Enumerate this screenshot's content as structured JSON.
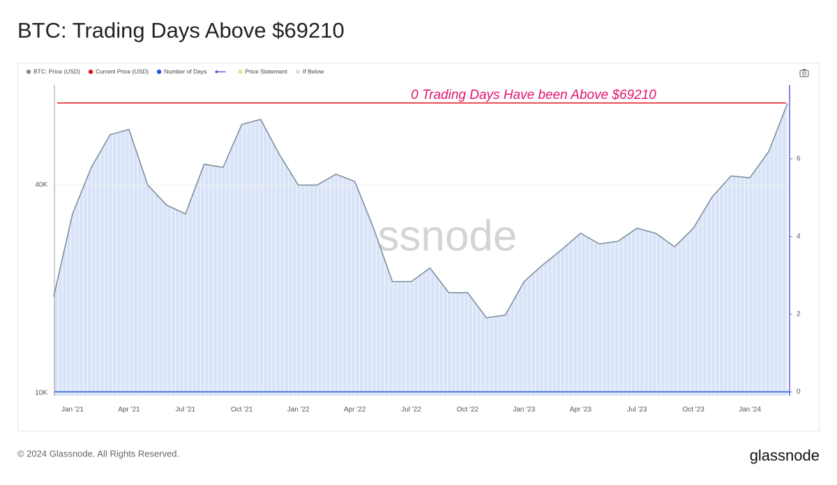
{
  "chart_data": {
    "type": "line",
    "title": "BTC: Trading Days Above $69210",
    "annotation": "0 Trading Days Have been Above $69210",
    "annotation_name": "Price Statement",
    "annotation_color": "#f5dc96",
    "footer": "© 2024 Glassnode. All Rights Reserved.",
    "brand": "glassnode",
    "x": [
      null,
      "Jan '21",
      null,
      null,
      "Apr '21",
      null,
      null,
      "Jul '21",
      null,
      null,
      "Oct '21",
      null,
      null,
      "Jan '22",
      null,
      null,
      "Apr '22",
      null,
      null,
      "Jul '22",
      null,
      null,
      "Oct '22",
      null,
      null,
      "Jan '23",
      null,
      null,
      "Apr '23",
      null,
      null,
      "Jul '23",
      null,
      null,
      "Oct '23",
      null,
      null,
      "Jan '24",
      null,
      null
    ],
    "series": [
      {
        "name": "BTC: Price (USD)",
        "color": "#7f8f9c",
        "values": [
          19000,
          33000,
          45000,
          56000,
          58000,
          40000,
          35000,
          33000,
          46000,
          45000,
          60000,
          62000,
          49000,
          40000,
          40000,
          43000,
          41000,
          30000,
          21000,
          21000,
          23000,
          19500,
          19500,
          16500,
          16800,
          21000,
          23500,
          26000,
          29000,
          27000,
          27500,
          30000,
          29000,
          26500,
          30000,
          37000,
          42500,
          42000,
          50000,
          69000
        ]
      },
      {
        "name": "If Below",
        "color": "#d9e4f8",
        "values": [
          19000,
          33000,
          45000,
          56000,
          58000,
          40000,
          35000,
          33000,
          46000,
          45000,
          60000,
          62000,
          49000,
          40000,
          40000,
          43000,
          41000,
          30000,
          21000,
          21000,
          23000,
          19500,
          19500,
          16500,
          16800,
          21000,
          23500,
          26000,
          29000,
          27000,
          27500,
          30000,
          29000,
          26500,
          30000,
          37000,
          42500,
          42000,
          50000,
          69000
        ]
      }
    ],
    "current_price": {
      "name": "Current Price (USD)",
      "color": "#e0161b",
      "value": 69210
    },
    "number_of_days": {
      "name": "Number of Days",
      "color": "#1f55e0",
      "value": 0,
      "axis": "y2"
    },
    "log_scale": true,
    "ylim": [
      9800,
      78000
    ],
    "yticks": [
      {
        "value": 10000,
        "label": "10K"
      },
      {
        "value": 40000,
        "label": "40K"
      }
    ],
    "y2lim": [
      -0.1,
      7.9
    ],
    "y2ticks": [
      0,
      2,
      4,
      6
    ],
    "grid": true
  }
}
